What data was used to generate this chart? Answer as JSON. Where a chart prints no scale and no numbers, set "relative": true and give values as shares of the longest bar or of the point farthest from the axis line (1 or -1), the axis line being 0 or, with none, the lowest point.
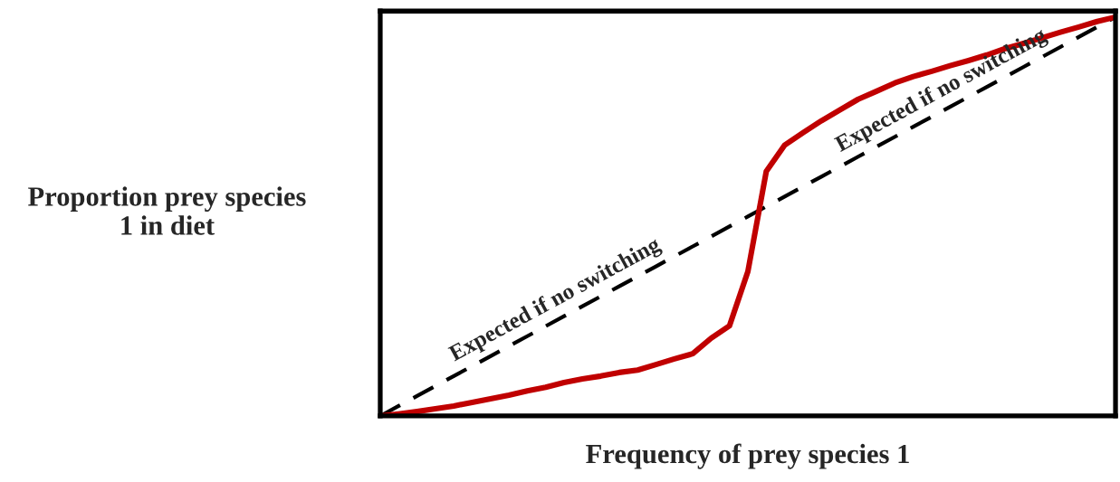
{
  "chart_data": {
    "type": "line",
    "relative": true,
    "xlabel": "Frequency of prey species 1",
    "ylabel": "Proportion prey species\n1 in diet",
    "categories": [
      null,
      null,
      null,
      null,
      null,
      null,
      null,
      null,
      null,
      null,
      null,
      null,
      null,
      null,
      null,
      null,
      null,
      null,
      null,
      null,
      null,
      null,
      null,
      null,
      null,
      null,
      null,
      null,
      null,
      null,
      null,
      null,
      null,
      null,
      null,
      null,
      null,
      null,
      null,
      null,
      null
    ],
    "series": [
      {
        "color": "#000000",
        "line_style": "dashed",
        "values": [
          0,
          0.025,
          0.05,
          0.075,
          0.1,
          0.125,
          0.15,
          0.175,
          0.2,
          0.225,
          0.25,
          0.275,
          0.3,
          0.325,
          0.35,
          0.375,
          0.4,
          0.425,
          0.45,
          0.475,
          0.5,
          0.525,
          0.55,
          0.575,
          0.6,
          0.625,
          0.65,
          0.675,
          0.7,
          0.725,
          0.75,
          0.775,
          0.8,
          0.825,
          0.85,
          0.875,
          0.9,
          0.925,
          0.95,
          0.975,
          1
        ]
      },
      {
        "color": "#c00000",
        "line_style": "solid",
        "values": [
          0,
          0.005,
          0.011,
          0.018,
          0.025,
          0.034,
          0.043,
          0.052,
          0.063,
          0.072,
          0.084,
          0.093,
          0.1,
          0.109,
          0.115,
          0.129,
          0.143,
          0.156,
          0.195,
          0.226,
          0.362,
          0.613,
          0.679,
          0.71,
          0.74,
          0.767,
          0.794,
          0.814,
          0.835,
          0.851,
          0.864,
          0.878,
          0.891,
          0.905,
          0.921,
          0.934,
          0.948,
          0.962,
          0.975,
          0.989,
          1
        ]
      }
    ],
    "annotations": [
      "Expected if no switching",
      "Expected if no switching"
    ],
    "tick_labels": false
  }
}
